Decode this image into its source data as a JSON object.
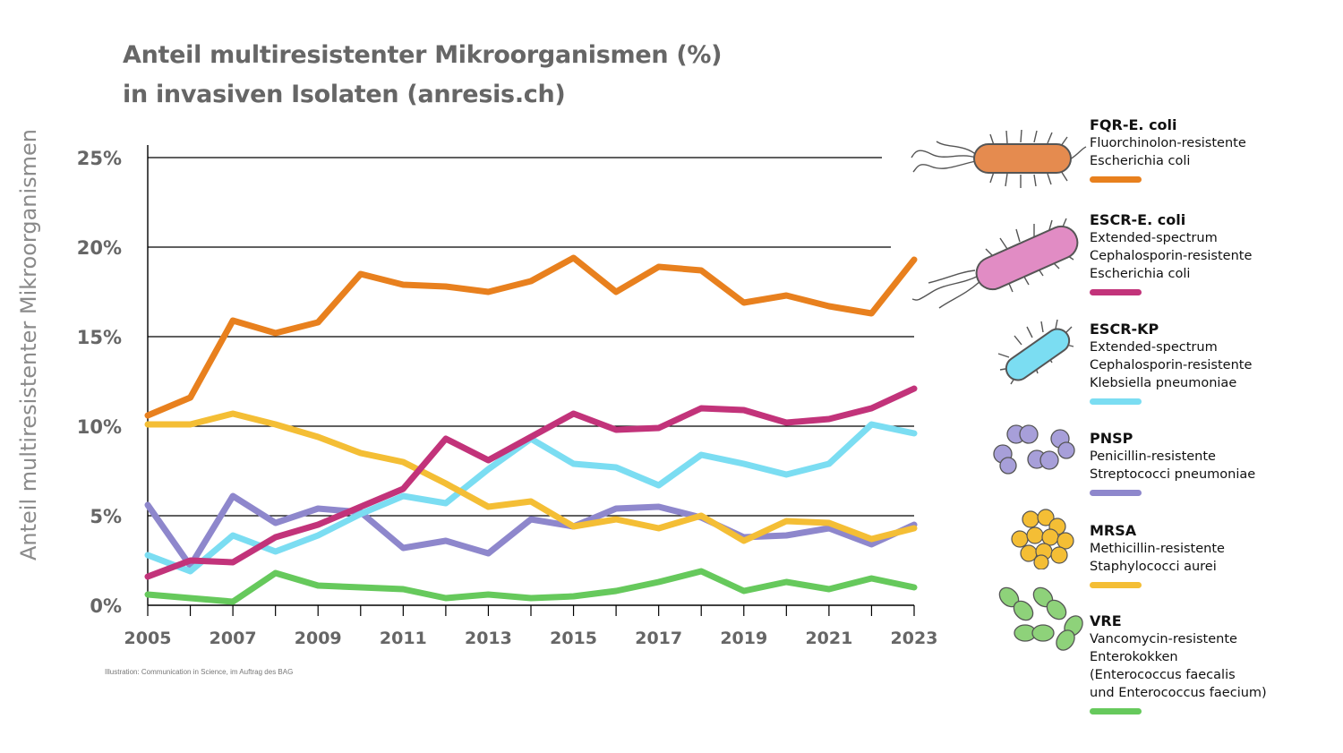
{
  "chart_data": {
    "type": "line",
    "title": "Anteil multiresistenter Mikroorganismen (%)",
    "subtitle": "in invasiven Isolaten (anresis.ch)",
    "ylabel": "Anteil multiresistenter Mikroorganismen",
    "xlabel": "",
    "x": [
      2005,
      2006,
      2007,
      2008,
      2009,
      2010,
      2011,
      2012,
      2013,
      2014,
      2015,
      2016,
      2017,
      2018,
      2019,
      2020,
      2021,
      2022,
      2023
    ],
    "x_tick_labels": [
      "2005",
      "2007",
      "2009",
      "2011",
      "2013",
      "2015",
      "2017",
      "2019",
      "2021",
      "2023"
    ],
    "xlim": [
      2005,
      2023
    ],
    "y_tick_labels": [
      "25%",
      "20%",
      "15%",
      "10%",
      "5%",
      "0%"
    ],
    "y_ticks": [
      25,
      20,
      15,
      10,
      5,
      0
    ],
    "ylim": [
      0,
      25
    ],
    "grid": "horizontal",
    "legend_position": "right",
    "series": [
      {
        "name": "FQR-E. coli",
        "description": "Fluorchinolon-resistente\nEscherichia coli",
        "color": "#E8801E",
        "values": [
          10.6,
          11.6,
          15.9,
          15.2,
          15.8,
          18.5,
          17.9,
          17.8,
          17.5,
          18.1,
          19.4,
          17.5,
          18.9,
          18.7,
          16.9,
          17.3,
          16.7,
          16.3,
          19.3
        ]
      },
      {
        "name": "ESCR-E. coli",
        "description": "Extended-spectrum\nCephalosporin-resistente\nEscherichia coli",
        "color": "#C2337A",
        "values": [
          1.6,
          2.5,
          2.4,
          3.8,
          4.5,
          5.5,
          6.5,
          9.3,
          8.1,
          9.4,
          10.7,
          9.8,
          9.9,
          11.0,
          10.9,
          10.2,
          10.4,
          11.0,
          12.1
        ]
      },
      {
        "name": "ESCR-KP",
        "description": "Extended-spectrum\nCephalosporin-resistente\nKlebsiella pneumoniae",
        "color": "#7BDDF2",
        "values": [
          2.8,
          1.9,
          3.9,
          3.0,
          3.9,
          5.1,
          6.1,
          5.7,
          7.6,
          9.3,
          7.9,
          7.7,
          6.7,
          8.4,
          7.9,
          7.3,
          7.9,
          10.1,
          9.6
        ]
      },
      {
        "name": "PNSP",
        "description": "Penicillin-resistente\nStreptococci pneumoniae",
        "color": "#8E87CC",
        "values": [
          5.6,
          2.2,
          6.1,
          4.6,
          5.4,
          5.2,
          3.2,
          3.6,
          2.9,
          4.8,
          4.4,
          5.4,
          5.5,
          4.9,
          3.8,
          3.9,
          4.3,
          3.4,
          4.5
        ]
      },
      {
        "name": "MRSA",
        "description": "Methicillin-resistente\nStaphylococci aurei",
        "color": "#F4BE35",
        "values": [
          10.1,
          10.1,
          10.7,
          10.1,
          9.4,
          8.5,
          8.0,
          6.8,
          5.5,
          5.8,
          4.4,
          4.8,
          4.3,
          5.0,
          3.6,
          4.7,
          4.6,
          3.7,
          4.3
        ]
      },
      {
        "name": "VRE",
        "description": "Vancomycin-resistente\nEnterokokken\n(Enterococcus faecalis\nund Enterococcus faecium)",
        "color": "#66C95C",
        "values": [
          0.6,
          0.4,
          0.2,
          1.8,
          1.1,
          1.0,
          0.9,
          0.4,
          0.6,
          0.4,
          0.5,
          0.8,
          1.3,
          1.9,
          0.8,
          1.3,
          0.9,
          1.5,
          1.0
        ]
      }
    ]
  },
  "credit": "Illustration: Communication in Science, im Auftrag des BAG",
  "legend_icons": [
    "e-coli-rod-icon",
    "e-coli-rod-icon",
    "klebsiella-rod-icon",
    "diplococcus-cluster-icon",
    "staphylococcus-cluster-icon",
    "enterococcus-pair-icon"
  ]
}
